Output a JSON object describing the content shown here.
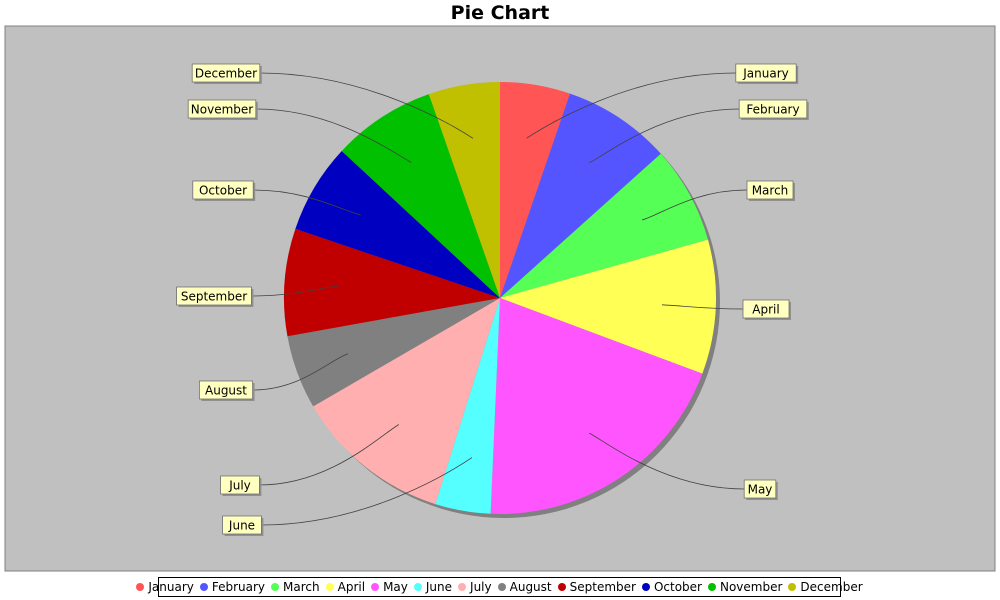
{
  "chart_data": {
    "type": "pie",
    "title": "Pie Chart",
    "start_angle_deg": 90,
    "direction": "clockwise",
    "legend_position": "bottom",
    "categories": [
      "January",
      "February",
      "March",
      "April",
      "May",
      "June",
      "July",
      "August",
      "September",
      "October",
      "November",
      "December"
    ],
    "values": [
      5.7,
      8.8,
      7.9,
      10.9,
      21.7,
      4.5,
      12.8,
      6.0,
      8.7,
      7.3,
      8.4,
      5.8
    ],
    "colors": [
      "#ff5555",
      "#5555ff",
      "#55ff55",
      "#ffff55",
      "#ff55ff",
      "#55ffff",
      "#ffafaf",
      "#808080",
      "#c00000",
      "#0000c0",
      "#00c000",
      "#c0c000"
    ]
  }
}
